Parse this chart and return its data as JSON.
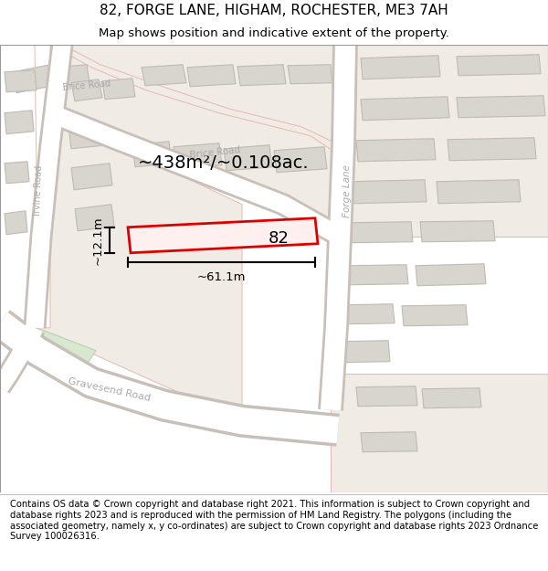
{
  "title": "82, FORGE LANE, HIGHAM, ROCHESTER, ME3 7AH",
  "subtitle": "Map shows position and indicative extent of the property.",
  "footer": "Contains OS data © Crown copyright and database right 2021. This information is subject to Crown copyright and database rights 2023 and is reproduced with the permission of HM Land Registry. The polygons (including the associated geometry, namely x, y co-ordinates) are subject to Crown copyright and database rights 2023 Ordnance Survey 100026316.",
  "bg_color": "#f5f3f0",
  "road_fill": "#ffffff",
  "road_edge": "#c8c0b8",
  "parcel_fill": "#f0ebe5",
  "parcel_edge": "#e8b8b0",
  "building_fill": "#d8d4ce",
  "building_edge": "#c0bab4",
  "highlight_fill": "#fff0f0",
  "highlight_edge": "#dd0000",
  "green_fill": "#d8e8d0",
  "green_edge": "#b8d0b0",
  "dim_color": "#000000",
  "label_number": "82",
  "area_label": "~438m²/~0.108ac.",
  "dim_width": "~61.1m",
  "dim_height": "~12.1m",
  "road_label_forge": "Forge Lane",
  "road_label_brice": "Brice Road",
  "road_label_irvine": "Irvine Road",
  "road_label_gravesend": "Gravesend Road",
  "title_fontsize": 11,
  "subtitle_fontsize": 9.5,
  "footer_fontsize": 7.2,
  "map_label_color": "#aaaaaa"
}
